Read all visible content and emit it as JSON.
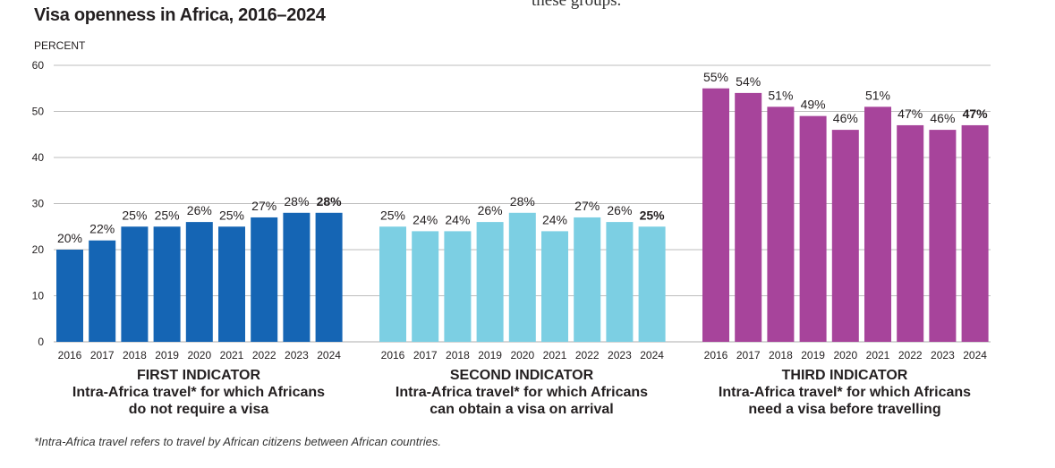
{
  "title": "Visa openness in Africa, 2016–2024",
  "cut_text": "these groups.",
  "footnote": "*Intra-Africa travel refers to travel by African citizens between African countries.",
  "colors": {
    "first": "#1565b4",
    "second": "#7ccfe3",
    "third": "#a7449b",
    "grid": "#bdbdbd",
    "text": "#231f20"
  },
  "chart_data": {
    "type": "bar",
    "ylabel": "PERCENT",
    "ylim": [
      0,
      60
    ],
    "yticks": [
      0,
      10,
      20,
      30,
      40,
      50,
      60
    ],
    "grid": true,
    "categories": [
      "2016",
      "2017",
      "2018",
      "2019",
      "2020",
      "2021",
      "2022",
      "2023",
      "2024"
    ],
    "series": [
      {
        "name": "FIRST INDICATOR",
        "subtitle_line1": "Intra-Africa travel* for which Africans",
        "subtitle_line2": "do not require a visa",
        "color_key": "first",
        "values": [
          20,
          22,
          25,
          25,
          26,
          25,
          27,
          28,
          28
        ],
        "labels": [
          "20%",
          "22%",
          "25%",
          "25%",
          "26%",
          "25%",
          "27%",
          "28%",
          "28%"
        ]
      },
      {
        "name": "SECOND INDICATOR",
        "subtitle_line1": "Intra-Africa travel* for which Africans",
        "subtitle_line2": "can obtain a visa on arrival",
        "color_key": "second",
        "values": [
          25,
          24,
          24,
          26,
          28,
          24,
          27,
          26,
          25
        ],
        "labels": [
          "25%",
          "24%",
          "24%",
          "26%",
          "28%",
          "24%",
          "27%",
          "26%",
          "25%"
        ]
      },
      {
        "name": "THIRD INDICATOR",
        "subtitle_line1": "Intra-Africa travel* for which Africans",
        "subtitle_line2": "need a visa before travelling",
        "color_key": "third",
        "values": [
          55,
          54,
          51,
          49,
          46,
          51,
          47,
          46,
          47
        ],
        "labels": [
          "55%",
          "54%",
          "51%",
          "49%",
          "46%",
          "51%",
          "47%",
          "46%",
          "47%"
        ]
      }
    ]
  }
}
